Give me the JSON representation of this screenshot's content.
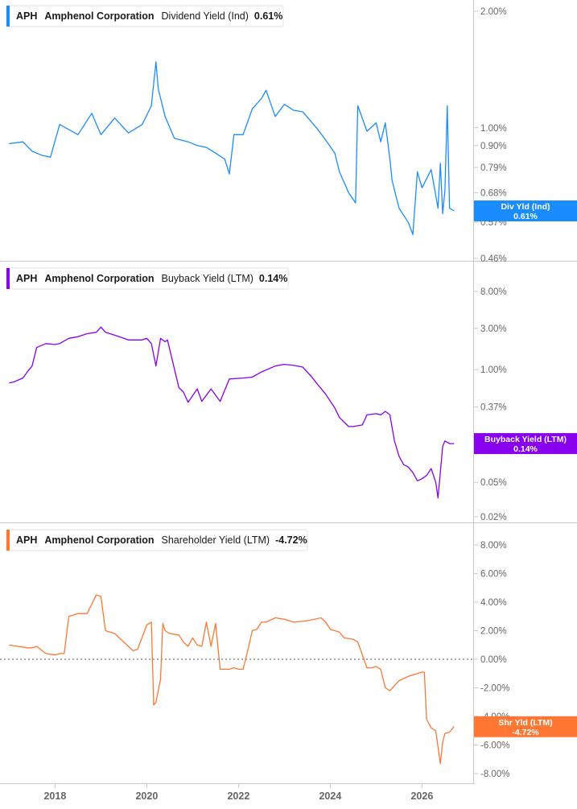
{
  "chart_data": [
    {
      "type": "line",
      "ticker": "APH",
      "company": "Amphenol Corporation",
      "metric": "Dividend Yield (Ind)",
      "current_value": "0.61%",
      "tag_label": "Div Yld (Ind)",
      "color": "#1a8cff",
      "scale": "log",
      "y_ticks": [
        "2.00%",
        "1.00%",
        "0.90%",
        "0.79%",
        "0.68%",
        "0.57%",
        "0.46%"
      ],
      "y_tick_values": [
        2.0,
        1.0,
        0.9,
        0.79,
        0.68,
        0.57,
        0.46
      ],
      "series": [
        {
          "x": [
            2017.0,
            2017.3,
            2017.5,
            2017.7,
            2017.9,
            2018.1,
            2018.3,
            2018.5,
            2018.8,
            2019.0,
            2019.3,
            2019.6,
            2019.9,
            2020.1,
            2020.2,
            2020.25,
            2020.4,
            2020.6,
            2020.9,
            2021.1,
            2021.3,
            2021.5,
            2021.7,
            2021.8,
            2021.9,
            2022.1,
            2022.3,
            2022.5,
            2022.6,
            2022.8,
            2023.0,
            2023.2,
            2023.4,
            2023.7,
            2023.9,
            2024.1,
            2024.2,
            2024.4,
            2024.55,
            2024.6,
            2024.8,
            2025.0,
            2025.1,
            2025.2,
            2025.3,
            2025.35,
            2025.5,
            2025.7,
            2025.8,
            2025.9,
            2026.0,
            2026.2,
            2026.35,
            2026.4,
            2026.45,
            2026.5,
            2026.55,
            2026.6,
            2026.7
          ],
          "values": [
            0.91,
            0.92,
            0.87,
            0.85,
            0.84,
            1.02,
            0.99,
            0.96,
            1.09,
            0.96,
            1.06,
            0.97,
            1.02,
            1.14,
            1.48,
            1.26,
            1.07,
            0.94,
            0.92,
            0.9,
            0.89,
            0.86,
            0.83,
            0.76,
            0.96,
            0.96,
            1.12,
            1.19,
            1.25,
            1.07,
            1.15,
            1.11,
            1.1,
            1.0,
            0.93,
            0.86,
            0.77,
            0.68,
            0.64,
            1.14,
            0.98,
            1.03,
            0.92,
            1.03,
            0.83,
            0.73,
            0.62,
            0.57,
            0.53,
            0.77,
            0.7,
            0.78,
            0.62,
            0.81,
            0.6,
            0.69,
            1.14,
            0.62,
            0.61
          ]
        }
      ]
    },
    {
      "type": "line",
      "ticker": "APH",
      "company": "Amphenol Corporation",
      "metric": "Buyback Yield (LTM)",
      "current_value": "0.14%",
      "tag_label": "Buyback Yield (LTM)",
      "color": "#8800ee",
      "scale": "log",
      "y_ticks": [
        "8.00%",
        "3.00%",
        "1.00%",
        "0.37%",
        "0.14%",
        "0.05%",
        "0.02%"
      ],
      "y_tick_values": [
        8.0,
        3.0,
        1.0,
        0.37,
        0.14,
        0.05,
        0.02
      ],
      "series": [
        {
          "x": [
            2017.0,
            2017.1,
            2017.3,
            2017.4,
            2017.5,
            2017.6,
            2017.8,
            2018.0,
            2018.1,
            2018.3,
            2018.5,
            2018.7,
            2018.9,
            2019.0,
            2019.1,
            2019.3,
            2019.6,
            2019.9,
            2020.0,
            2020.1,
            2020.2,
            2020.3,
            2020.4,
            2020.45,
            2020.7,
            2020.8,
            2020.9,
            2021.1,
            2021.2,
            2021.4,
            2021.6,
            2021.8,
            2022.1,
            2022.3,
            2022.5,
            2022.8,
            2023.0,
            2023.2,
            2023.4,
            2023.6,
            2023.7,
            2023.9,
            2024.1,
            2024.2,
            2024.4,
            2024.5,
            2024.7,
            2024.8,
            2025.0,
            2025.1,
            2025.2,
            2025.3,
            2025.4,
            2025.5,
            2025.6,
            2025.7,
            2025.8,
            2025.9,
            2026.0,
            2026.1,
            2026.2,
            2026.3,
            2026.35,
            2026.45,
            2026.5,
            2026.6,
            2026.7
          ],
          "values": [
            0.7,
            0.72,
            0.8,
            0.95,
            1.1,
            1.8,
            2.0,
            1.95,
            2.0,
            2.3,
            2.4,
            2.6,
            2.7,
            3.1,
            2.7,
            2.5,
            2.2,
            2.2,
            2.3,
            2.0,
            1.1,
            2.3,
            2.1,
            2.2,
            0.62,
            0.55,
            0.42,
            0.6,
            0.43,
            0.6,
            0.43,
            0.78,
            0.8,
            0.82,
            0.94,
            1.1,
            1.15,
            1.12,
            1.07,
            0.82,
            0.7,
            0.52,
            0.36,
            0.28,
            0.22,
            0.22,
            0.23,
            0.3,
            0.31,
            0.3,
            0.33,
            0.3,
            0.15,
            0.1,
            0.08,
            0.075,
            0.065,
            0.052,
            0.055,
            0.06,
            0.072,
            0.05,
            0.033,
            0.13,
            0.15,
            0.14,
            0.14
          ]
        }
      ]
    },
    {
      "type": "line",
      "ticker": "APH",
      "company": "Amphenol Corporation",
      "metric": "Shareholder Yield (LTM)",
      "current_value": "-4.72%",
      "tag_label": "Shr Yld (LTM)",
      "color": "#ff7733",
      "scale": "linear",
      "y_ticks": [
        "8.00%",
        "6.00%",
        "4.00%",
        "2.00%",
        "0.00%",
        "-2.00%",
        "-4.00%",
        "-6.00%",
        "-8.00%"
      ],
      "y_tick_values": [
        8,
        6,
        4,
        2,
        0,
        -2,
        -4,
        -6,
        -8
      ],
      "zero_line": true,
      "series": [
        {
          "x": [
            2017.0,
            2017.2,
            2017.4,
            2017.5,
            2017.6,
            2017.8,
            2018.0,
            2018.1,
            2018.2,
            2018.3,
            2018.5,
            2018.7,
            2018.9,
            2019.0,
            2019.1,
            2019.3,
            2019.5,
            2019.7,
            2019.8,
            2020.0,
            2020.1,
            2020.15,
            2020.2,
            2020.3,
            2020.35,
            2020.4,
            2020.5,
            2020.7,
            2020.8,
            2020.9,
            2021.0,
            2021.1,
            2021.2,
            2021.3,
            2021.4,
            2021.5,
            2021.6,
            2021.8,
            2021.9,
            2022.0,
            2022.1,
            2022.2,
            2022.3,
            2022.4,
            2022.5,
            2022.6,
            2022.8,
            2023.0,
            2023.2,
            2023.5,
            2023.8,
            2023.9,
            2024.0,
            2024.2,
            2024.3,
            2024.5,
            2024.6,
            2024.8,
            2024.9,
            2025.0,
            2025.1,
            2025.2,
            2025.3,
            2025.5,
            2025.7,
            2025.9,
            2026.0,
            2026.05,
            2026.1,
            2026.2,
            2026.3,
            2026.4,
            2026.45,
            2026.5,
            2026.6,
            2026.7
          ],
          "values": [
            1.0,
            0.9,
            0.8,
            0.8,
            0.9,
            0.4,
            0.3,
            0.4,
            0.4,
            3.0,
            3.2,
            3.2,
            4.5,
            4.4,
            2.0,
            1.8,
            1.2,
            0.6,
            0.7,
            2.4,
            2.6,
            -3.2,
            -3.0,
            -1.4,
            2.5,
            2.0,
            1.8,
            1.7,
            1.2,
            0.9,
            1.5,
            1.0,
            0.9,
            2.6,
            0.9,
            2.5,
            -0.7,
            -0.7,
            -0.6,
            -0.7,
            -0.7,
            0.6,
            2.0,
            2.1,
            2.6,
            2.6,
            2.9,
            2.8,
            2.6,
            2.7,
            2.9,
            2.6,
            2.1,
            1.9,
            1.5,
            1.4,
            1.2,
            -0.6,
            -0.6,
            -0.5,
            -0.7,
            -2.0,
            -2.2,
            -1.5,
            -1.2,
            -1.0,
            -0.9,
            -0.9,
            -4.2,
            -4.8,
            -5.0,
            -7.3,
            -5.8,
            -5.2,
            -5.1,
            -4.7
          ]
        }
      ]
    }
  ],
  "x_axis": {
    "ticks": [
      "2018",
      "2020",
      "2022",
      "2024",
      "2026"
    ],
    "tick_values": [
      2018,
      2020,
      2022,
      2024,
      2026
    ],
    "range": [
      2016.8,
      2026.8
    ]
  }
}
